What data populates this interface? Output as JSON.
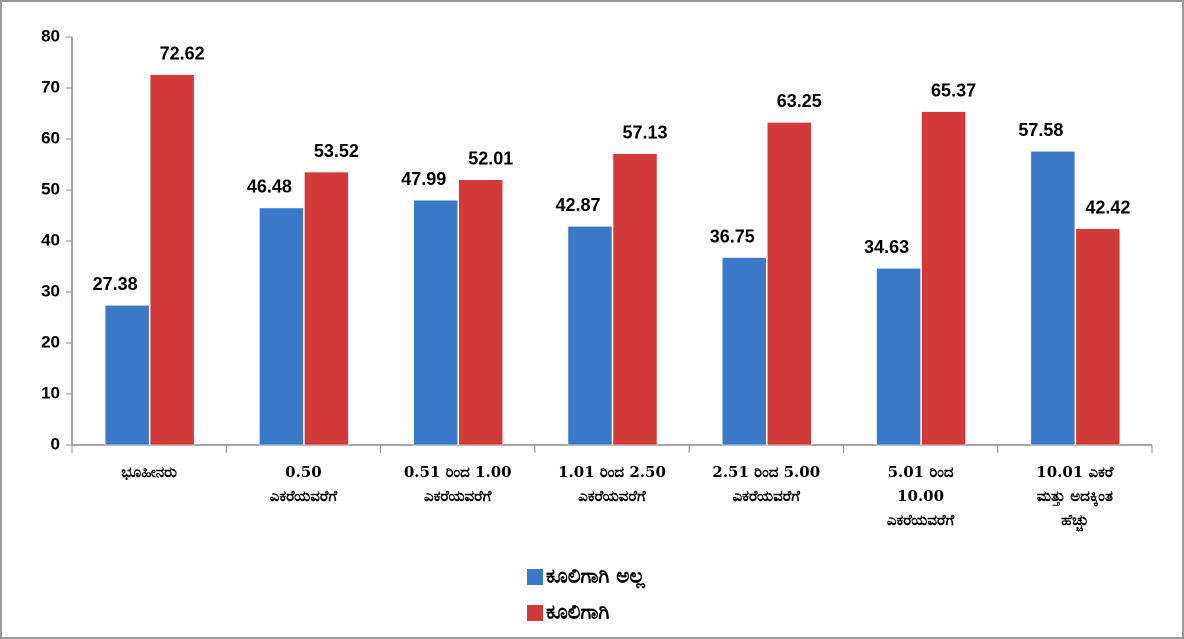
{
  "chart_data": {
    "type": "bar",
    "categories": [
      "ಭೂಹೀನರು",
      "0.50\nಎಕರೆಯವರೆಗೆ",
      "0.51 ರಿಂದ 1.00\nಎಕರೆಯವರೆಗೆ",
      "1.01 ರಿಂದ 2.50\nಎಕರೆಯವರೆಗೆ",
      "2.51 ರಿಂದ 5.00\nಎಕರೆಯವರೆಗೆ",
      "5.01 ರಿಂದ\n10.00\nಎಕರೆಯವರೆಗೆ",
      "10.01 ಎಕರೆ\nಮತ್ತು ಅದಕ್ಕಿಂತ\nಹೆಚ್ಚು"
    ],
    "series": [
      {
        "name": "ಕೂಲಿಗಾಗಿ ಅಲ್ಲ",
        "color": "#3a78c8",
        "values": [
          27.38,
          46.48,
          47.99,
          42.87,
          36.75,
          34.63,
          57.58
        ]
      },
      {
        "name": "ಕೂಲಿಗಾಗಿ",
        "color": "#d23a3a",
        "values": [
          72.62,
          53.52,
          52.01,
          57.13,
          63.25,
          65.37,
          42.42
        ]
      }
    ],
    "ylim": [
      0,
      80
    ],
    "yticks": [
      0,
      10,
      20,
      30,
      40,
      50,
      60,
      70,
      80
    ],
    "grid": false,
    "legend": "bottom"
  }
}
